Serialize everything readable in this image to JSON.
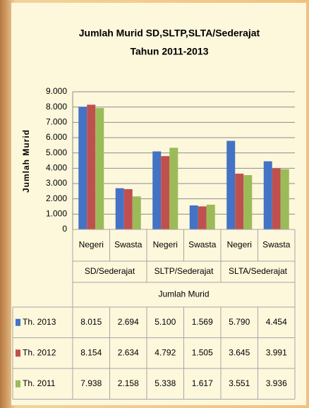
{
  "chart_data": {
    "type": "bar",
    "title": "Jumlah Murid SD,SLTP,SLTA/Sederajat",
    "subtitle": "Tahun 2011-2013",
    "y_label": "Jumlah Murid",
    "categories": [
      "Negeri",
      "Swasta",
      "Negeri",
      "Swasta",
      "Negeri",
      "Swasta"
    ],
    "category_groups": [
      "SD/Sederajat",
      "SLTP/Sederajat",
      "SLTA/Sederajat"
    ],
    "table_header": "Jumlah Murid",
    "series": [
      {
        "name": "Th. 2013",
        "color": "#4472c4",
        "values": [
          8015,
          2694,
          5100,
          1569,
          5790,
          4454
        ],
        "value_labels": [
          "8.015",
          "2.694",
          "5.100",
          "1.569",
          "5.790",
          "4.454"
        ]
      },
      {
        "name": "Th. 2012",
        "color": "#c0504d",
        "values": [
          8154,
          2634,
          4792,
          1505,
          3645,
          3991
        ],
        "value_labels": [
          "8.154",
          "2.634",
          "4.792",
          "1.505",
          "3.645",
          "3.991"
        ]
      },
      {
        "name": "Th. 2011",
        "color": "#9bbb59",
        "values": [
          7938,
          2158,
          5338,
          1617,
          3551,
          3936
        ],
        "value_labels": [
          "7.938",
          "2.158",
          "5.338",
          "1.617",
          "3.551",
          "3.936"
        ]
      }
    ],
    "ylim": [
      0,
      9000
    ],
    "yticks": [
      0,
      {
        "value": 1000,
        "label": "1.000"
      },
      {
        "value": 2000,
        "label": "2.000"
      },
      {
        "value": 3000,
        "label": "3.000"
      },
      {
        "value": 4000,
        "label": "4.000"
      },
      {
        "value": 5000,
        "label": "5.000"
      },
      {
        "value": 6000,
        "label": "6.000"
      },
      {
        "value": 7000,
        "label": "7.000"
      },
      {
        "value": 8000,
        "label": "8.000"
      },
      {
        "value": 9000,
        "label": "9.000"
      }
    ],
    "grid": true
  }
}
